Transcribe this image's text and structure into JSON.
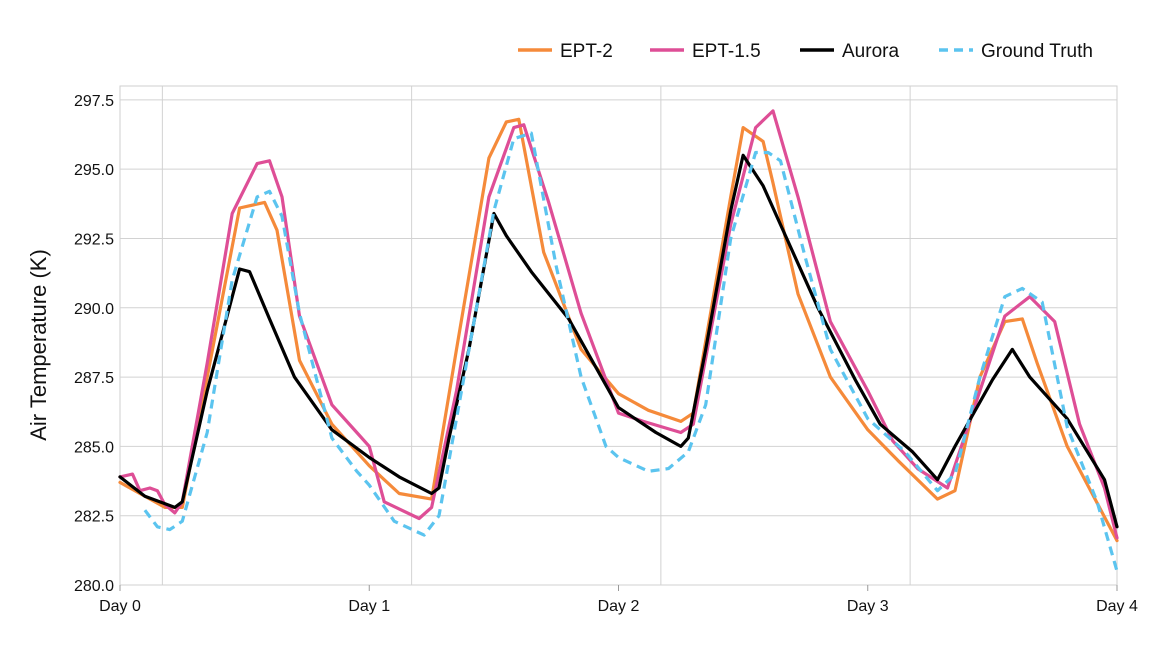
{
  "chart_data": {
    "type": "line",
    "title": "",
    "xlabel": "",
    "ylabel": "Air Temperature (K)",
    "xlim": [
      0,
      4
    ],
    "ylim": [
      280,
      298
    ],
    "grid": true,
    "legend_position": "top-right",
    "x_ticks": [
      {
        "value": 0,
        "label": "Day 0"
      },
      {
        "value": 1,
        "label": "Day 1"
      },
      {
        "value": 2,
        "label": "Day 2"
      },
      {
        "value": 3,
        "label": "Day 3"
      },
      {
        "value": 4,
        "label": "Day 4"
      }
    ],
    "y_ticks": [
      {
        "value": 280.0,
        "label": "280.0"
      },
      {
        "value": 282.5,
        "label": "282.5"
      },
      {
        "value": 285.0,
        "label": "285.0"
      },
      {
        "value": 287.5,
        "label": "287.5"
      },
      {
        "value": 290.0,
        "label": "290.0"
      },
      {
        "value": 292.5,
        "label": "292.5"
      },
      {
        "value": 295.0,
        "label": "295.0"
      },
      {
        "value": 297.5,
        "label": "297.5"
      }
    ],
    "series": [
      {
        "name": "EPT-2",
        "color": "#f58a3a",
        "dashed": false,
        "x": [
          0,
          0.08,
          0.18,
          0.25,
          0.35,
          0.48,
          0.58,
          0.63,
          0.72,
          0.85,
          1.0,
          1.12,
          1.25,
          1.35,
          1.48,
          1.55,
          1.6,
          1.7,
          1.85,
          2.0,
          2.12,
          2.25,
          2.3,
          2.45,
          2.5,
          2.58,
          2.62,
          2.72,
          2.85,
          3.0,
          3.12,
          3.28,
          3.35,
          3.45,
          3.55,
          3.62,
          3.68,
          3.8,
          3.9,
          4.0
        ],
        "values": [
          283.7,
          283.3,
          282.8,
          282.8,
          287.5,
          293.6,
          293.8,
          292.8,
          288.1,
          285.8,
          284.3,
          283.3,
          283.1,
          288.5,
          295.4,
          296.7,
          296.8,
          292.0,
          288.5,
          286.9,
          286.3,
          285.9,
          286.2,
          294.0,
          296.5,
          296.0,
          294.5,
          290.5,
          287.5,
          285.6,
          284.5,
          283.1,
          283.4,
          287.5,
          289.5,
          289.6,
          288.0,
          285.0,
          283.3,
          281.6
        ]
      },
      {
        "name": "EPT-1.5",
        "color": "#de4e96",
        "dashed": false,
        "x": [
          0,
          0.05,
          0.08,
          0.12,
          0.15,
          0.18,
          0.22,
          0.25,
          0.35,
          0.45,
          0.55,
          0.6,
          0.65,
          0.72,
          0.85,
          0.95,
          1.0,
          1.06,
          1.2,
          1.25,
          1.35,
          1.48,
          1.58,
          1.62,
          1.72,
          1.85,
          2.0,
          2.1,
          2.25,
          2.3,
          2.45,
          2.55,
          2.62,
          2.72,
          2.85,
          3.0,
          3.1,
          3.2,
          3.32,
          3.45,
          3.55,
          3.65,
          3.75,
          3.85,
          3.95,
          4.0
        ],
        "values": [
          283.9,
          284.0,
          283.4,
          283.5,
          283.4,
          282.9,
          282.6,
          283.0,
          288.0,
          293.4,
          295.2,
          295.3,
          294.0,
          289.7,
          286.5,
          285.5,
          285.0,
          283.0,
          282.4,
          282.8,
          287.0,
          294.0,
          296.5,
          296.6,
          293.8,
          289.8,
          286.2,
          285.9,
          285.5,
          285.8,
          293.0,
          296.5,
          297.1,
          294.0,
          289.5,
          287.0,
          285.2,
          284.2,
          283.5,
          287.0,
          289.7,
          290.4,
          289.5,
          285.8,
          283.5,
          281.7
        ]
      },
      {
        "name": "Aurora",
        "color": "#000000",
        "dashed": false,
        "x": [
          0,
          0.1,
          0.22,
          0.25,
          0.35,
          0.48,
          0.52,
          0.6,
          0.7,
          0.85,
          1.0,
          1.12,
          1.25,
          1.28,
          1.32,
          1.4,
          1.5,
          1.55,
          1.65,
          1.8,
          2.0,
          2.15,
          2.25,
          2.28,
          2.35,
          2.45,
          2.5,
          2.58,
          2.65,
          2.8,
          2.95,
          3.05,
          3.18,
          3.28,
          3.35,
          3.5,
          3.58,
          3.65,
          3.8,
          3.95,
          4.0
        ],
        "values": [
          283.9,
          283.2,
          282.8,
          283.0,
          287.0,
          291.4,
          291.3,
          289.6,
          287.5,
          285.6,
          284.6,
          283.9,
          283.3,
          283.5,
          285.3,
          288.5,
          293.4,
          292.6,
          291.3,
          289.6,
          286.4,
          285.5,
          285.0,
          285.3,
          288.5,
          293.5,
          295.5,
          294.4,
          293.0,
          290.0,
          287.4,
          285.8,
          284.8,
          283.8,
          285.0,
          287.4,
          288.5,
          287.5,
          286.0,
          283.8,
          282.1
        ]
      },
      {
        "name": "Ground Truth",
        "color": "#5bc4ef",
        "dashed": true,
        "x": [
          0.1,
          0.15,
          0.2,
          0.25,
          0.35,
          0.45,
          0.55,
          0.6,
          0.65,
          0.72,
          0.85,
          0.95,
          1.0,
          1.1,
          1.22,
          1.28,
          1.38,
          1.5,
          1.58,
          1.65,
          1.75,
          1.85,
          1.95,
          2.0,
          2.12,
          2.2,
          2.28,
          2.35,
          2.45,
          2.55,
          2.6,
          2.65,
          2.75,
          2.85,
          3.0,
          3.15,
          3.28,
          3.35,
          3.45,
          3.55,
          3.62,
          3.7,
          3.8,
          3.92,
          4.0
        ],
        "values": [
          282.7,
          282.1,
          282.0,
          282.3,
          285.5,
          291.0,
          294.0,
          294.2,
          293.3,
          289.8,
          285.3,
          284.1,
          283.6,
          282.3,
          281.8,
          282.5,
          287.5,
          293.5,
          296.1,
          296.3,
          291.5,
          287.5,
          285.0,
          284.6,
          284.1,
          284.2,
          284.8,
          286.5,
          292.5,
          295.6,
          295.6,
          295.3,
          291.8,
          288.5,
          286.0,
          284.8,
          283.4,
          284.0,
          287.5,
          290.4,
          290.7,
          290.2,
          285.7,
          283.0,
          280.5
        ]
      }
    ]
  }
}
